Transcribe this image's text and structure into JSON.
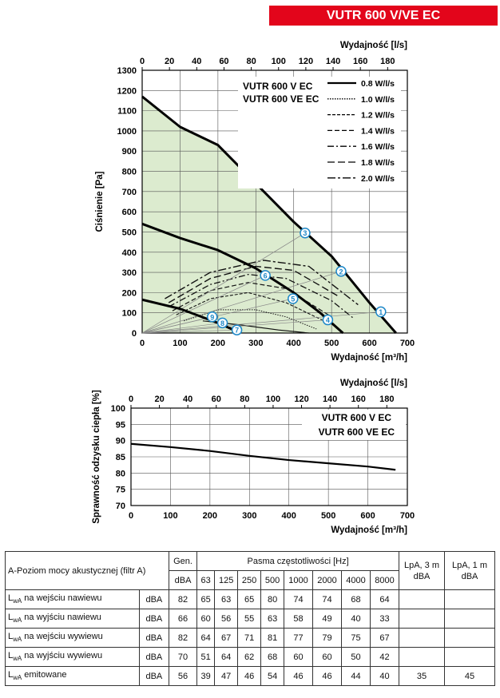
{
  "banner": "VUTR 600 V/VE EC",
  "chart_data": [
    {
      "type": "line",
      "title": "VUTR 600 V EC / VUTR 600 VE EC",
      "title_lines": [
        "VUTR 600 V EC",
        "VUTR 600 VE EC"
      ],
      "top_xlabel": "Wydajność [l/s]",
      "top_xticks": [
        0,
        20,
        40,
        60,
        80,
        100,
        120,
        140,
        160,
        180
      ],
      "xlabel": "Wydajność [m³/h]",
      "xticks": [
        0,
        100,
        200,
        300,
        400,
        500,
        600,
        700
      ],
      "ylabel": "Ciśnienie [Pa]",
      "yticks": [
        0,
        100,
        200,
        300,
        400,
        500,
        600,
        700,
        800,
        900,
        1000,
        1100,
        1200,
        1300
      ],
      "xlim": [
        0,
        700
      ],
      "ylim": [
        0,
        1300
      ],
      "series": [
        {
          "name": "speed-max",
          "x": [
            0,
            100,
            200,
            300,
            400,
            500,
            600,
            670
          ],
          "y": [
            1170,
            1020,
            930,
            740,
            550,
            380,
            150,
            0
          ]
        },
        {
          "name": "speed-mid",
          "x": [
            0,
            100,
            200,
            300,
            400,
            470,
            530
          ],
          "y": [
            540,
            470,
            410,
            320,
            200,
            100,
            0
          ]
        },
        {
          "name": "speed-low",
          "x": [
            0,
            100,
            200,
            260
          ],
          "y": [
            165,
            120,
            50,
            0
          ]
        }
      ],
      "power_legend": [
        "0.8 W/l/s",
        "1.0 W/l/s",
        "1.2 W/l/s",
        "1.4 W/l/s",
        "1.6 W/l/s",
        "1.8 W/l/s",
        "2.0 W/l/s"
      ],
      "power_curves": [
        {
          "name": "0.8 W/l/s",
          "x": [
            160,
            260,
            360,
            440
          ],
          "y": [
            60,
            40,
            15,
            0
          ]
        },
        {
          "name": "1.0 W/l/s",
          "x": [
            110,
            200,
            300,
            380,
            460
          ],
          "y": [
            60,
            115,
            115,
            80,
            20
          ]
        },
        {
          "name": "1.2 W/l/s",
          "x": [
            90,
            180,
            280,
            380,
            480
          ],
          "y": [
            90,
            170,
            200,
            150,
            60
          ]
        },
        {
          "name": "1.4 W/l/s",
          "x": [
            80,
            180,
            280,
            380,
            500
          ],
          "y": [
            110,
            210,
            250,
            220,
            80
          ]
        },
        {
          "name": "1.6 W/l/s",
          "x": [
            70,
            180,
            280,
            380,
            500,
            560
          ],
          "y": [
            130,
            240,
            290,
            270,
            160,
            70
          ]
        },
        {
          "name": "1.8 W/l/s",
          "x": [
            70,
            180,
            300,
            400,
            520
          ],
          "y": [
            150,
            270,
            330,
            310,
            180
          ]
        },
        {
          "name": "2.0 W/l/s",
          "x": [
            60,
            180,
            320,
            440,
            570
          ],
          "y": [
            170,
            300,
            360,
            330,
            140
          ]
        }
      ],
      "operating_points": [
        {
          "label": "1",
          "x": 630,
          "y": 105
        },
        {
          "label": "2",
          "x": 525,
          "y": 305
        },
        {
          "label": "3",
          "x": 430,
          "y": 495
        },
        {
          "label": "4",
          "x": 490,
          "y": 65
        },
        {
          "label": "5",
          "x": 398,
          "y": 170
        },
        {
          "label": "6",
          "x": 325,
          "y": 285
        },
        {
          "label": "7",
          "x": 250,
          "y": 15
        },
        {
          "label": "8",
          "x": 212,
          "y": 50
        },
        {
          "label": "9",
          "x": 185,
          "y": 80
        }
      ]
    },
    {
      "type": "line",
      "title": "VUTR 600 V EC / VUTR 600 VE EC",
      "title_lines": [
        "VUTR 600 V EC",
        "VUTR 600 VE EC"
      ],
      "top_xlabel": "Wydajność [l/s]",
      "top_xticks": [
        0,
        20,
        40,
        60,
        80,
        100,
        120,
        140,
        160,
        180
      ],
      "xlabel": "Wydajność [m³/h]",
      "xticks": [
        0,
        100,
        200,
        300,
        400,
        500,
        600,
        700
      ],
      "ylabel": "Sprawność odzysku ciepła [%]",
      "yticks": [
        70,
        75,
        80,
        85,
        90,
        95,
        100
      ],
      "xlim": [
        0,
        700
      ],
      "ylim": [
        70,
        100
      ],
      "series": [
        {
          "name": "efficiency",
          "x": [
            0,
            100,
            200,
            300,
            400,
            500,
            600,
            670
          ],
          "y": [
            89,
            88,
            86.8,
            85.3,
            84,
            83,
            82,
            81
          ]
        }
      ]
    }
  ],
  "table": {
    "title": "A-Poziom mocy akustycznej (filtr A)",
    "gen_label": "Gen.",
    "bands_label": "Pasma częstotliwości [Hz]",
    "lpa3_label": "LpA, 3 m dBA",
    "lpa1_label": "LpA, 1 m dBA",
    "dba_unit": "dBA",
    "frequencies": [
      "63",
      "125",
      "250",
      "500",
      "1000",
      "2000",
      "4000",
      "8000"
    ],
    "rows": [
      {
        "sym": "L",
        "sub": "wA",
        "label": " na wejściu nawiewu",
        "unit": "dBA",
        "gen": "82",
        "values": [
          "65",
          "63",
          "65",
          "80",
          "74",
          "74",
          "68",
          "64"
        ],
        "lpa3": "",
        "lpa1": ""
      },
      {
        "sym": "L",
        "sub": "wA",
        "label": " na wyjściu nawiewu",
        "unit": "dBA",
        "gen": "66",
        "values": [
          "60",
          "56",
          "55",
          "63",
          "58",
          "49",
          "40",
          "33"
        ],
        "lpa3": "",
        "lpa1": ""
      },
      {
        "sym": "L",
        "sub": "wA",
        "label": " na wejściu wywiewu",
        "unit": "dBA",
        "gen": "82",
        "values": [
          "64",
          "67",
          "71",
          "81",
          "77",
          "79",
          "75",
          "67"
        ],
        "lpa3": "",
        "lpa1": ""
      },
      {
        "sym": "L",
        "sub": "wA",
        "label": " na wyjściu wywiewu",
        "unit": "dBA",
        "gen": "70",
        "values": [
          "51",
          "64",
          "62",
          "68",
          "60",
          "60",
          "50",
          "42"
        ],
        "lpa3": "",
        "lpa1": ""
      },
      {
        "sym": "L",
        "sub": "wA",
        "label": " emitowane",
        "unit": "dBA",
        "gen": "56",
        "values": [
          "39",
          "47",
          "46",
          "54",
          "46",
          "46",
          "44",
          "40"
        ],
        "lpa3": "35",
        "lpa1": "45"
      }
    ]
  }
}
